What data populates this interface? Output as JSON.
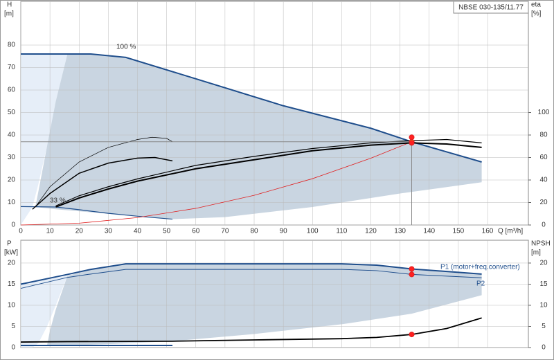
{
  "chart_data": [
    {
      "type": "line",
      "model": "NBSE 030-135/11.77",
      "ylabel": "H",
      "yunit": "[m]",
      "y2label": "eta",
      "y2unit": "[%]",
      "xlabel": "Q [m³/h]",
      "xlim": [
        0,
        174
      ],
      "xticks": [
        0,
        10,
        20,
        30,
        40,
        50,
        60,
        70,
        80,
        90,
        100,
        110,
        120,
        130,
        140,
        150,
        160
      ],
      "ylim": [
        0,
        99.4
      ],
      "yticks": [
        0,
        10,
        20,
        30,
        40,
        50,
        60,
        70,
        80
      ],
      "y2lim": [
        0,
        198.8
      ],
      "y2ticks": [
        0,
        20,
        40,
        60,
        80,
        100
      ],
      "show_xtick_labels": true,
      "grid": true,
      "annotations": [
        "100 %",
        "33 %"
      ],
      "series": [
        {
          "fill": true,
          "color": "#e6eef8",
          "x": [
            0,
            16,
            12,
            9,
            6,
            4,
            0
          ],
          "values": [
            76,
            76,
            55,
            35,
            18,
            8,
            0
          ]
        },
        {
          "fill": true,
          "color": "#c9d5e1",
          "x": [
            16,
            24,
            36,
            60,
            90,
            120,
            134,
            158,
            158,
            130,
            100,
            70,
            52,
            30,
            12,
            5,
            6.5,
            9,
            12
          ],
          "values": [
            76,
            76,
            74.5,
            65,
            53,
            43,
            37,
            28,
            19,
            14,
            8,
            3.5,
            2.6,
            5,
            7,
            8,
            18,
            35,
            55
          ]
        },
        {
          "color": "#1f4e8c",
          "width": 2,
          "x": [
            0,
            16,
            24,
            36,
            60,
            90,
            120,
            134,
            158
          ],
          "values": [
            76,
            76,
            76,
            74.5,
            65,
            53,
            43,
            37,
            28
          ]
        },
        {
          "color": "#1f4e8c",
          "width": 1.2,
          "x": [
            0,
            12,
            20,
            30,
            40,
            52
          ],
          "values": [
            8.2,
            8,
            6.8,
            5.2,
            3.9,
            2.6
          ]
        },
        {
          "color": "#e02020",
          "width": 0.8,
          "x": [
            0,
            20,
            40,
            60,
            80,
            100,
            120,
            134
          ],
          "values": [
            0,
            0.8,
            3.3,
            7.4,
            13.2,
            20.6,
            29.7,
            37
          ]
        },
        {
          "color": "#000000",
          "width": 2,
          "axis": "y2",
          "x": [
            12,
            20,
            30,
            40,
            60,
            80,
            100,
            120,
            134,
            146,
            158
          ],
          "values": [
            16,
            24,
            32,
            39,
            50,
            58,
            66,
            71,
            73,
            72,
            69
          ]
        },
        {
          "color": "#000000",
          "width": 1.2,
          "axis": "y2",
          "x": [
            12,
            20,
            30,
            40,
            60,
            80,
            100,
            120,
            134,
            146,
            158
          ],
          "values": [
            17,
            26,
            34,
            41,
            53,
            61,
            68,
            73,
            75,
            76,
            73
          ]
        },
        {
          "color": "#000000",
          "width": 0.7,
          "axis": "y2",
          "x": [
            5,
            10,
            20,
            30,
            40,
            45,
            50,
            52
          ],
          "values": [
            16,
            34,
            56,
            69,
            76,
            78,
            77,
            74
          ]
        },
        {
          "color": "#000000",
          "width": 1.5,
          "axis": "y2",
          "x": [
            4,
            10,
            20,
            30,
            40,
            46,
            52
          ],
          "values": [
            14,
            28,
            46,
            55,
            59.5,
            60,
            57
          ]
        },
        {
          "marker": true,
          "guide": true,
          "color": "#ffcc00",
          "x": [
            134
          ],
          "values": [
            37
          ]
        },
        {
          "marker": true,
          "color": "#ff2020",
          "axis": "y2",
          "x": [
            134,
            134
          ],
          "values": [
            78,
            73
          ]
        }
      ]
    },
    {
      "type": "line",
      "ylabel": "P",
      "yunit": "[kW]",
      "y2label": "NPSH",
      "y2unit": "[m]",
      "xlim": [
        0,
        174
      ],
      "xticks": [
        0,
        10,
        20,
        30,
        40,
        50,
        60,
        70,
        80,
        90,
        100,
        110,
        120,
        130,
        140,
        150,
        160
      ],
      "ylim": [
        0,
        25.4
      ],
      "yticks": [
        0,
        5,
        10,
        15,
        20
      ],
      "y2lim": [
        0,
        25.4
      ],
      "y2ticks": [
        0,
        5,
        10,
        15,
        20
      ],
      "show_xtick_labels": false,
      "grid": true,
      "annotations": [
        "P1 (motor+freq.converter)",
        "P2"
      ],
      "series": [
        {
          "fill": true,
          "color": "#e6eef8",
          "x": [
            0,
            16,
            12,
            9,
            6,
            4,
            0
          ],
          "values": [
            15,
            17,
            10,
            5,
            1,
            0,
            0
          ]
        },
        {
          "fill": true,
          "color": "#c9d5e1",
          "x": [
            16,
            24,
            36,
            110,
            122,
            134,
            158,
            158,
            134,
            110,
            80,
            52,
            30,
            16,
            9,
            10,
            12,
            14
          ],
          "values": [
            17,
            18.5,
            19.8,
            19.8,
            19.5,
            18.6,
            17.4,
            12.4,
            8,
            5.5,
            3.2,
            1.5,
            0.8,
            0.5,
            0.5,
            4,
            9,
            13
          ]
        },
        {
          "color": "#1f4e8c",
          "width": 2,
          "x": [
            0,
            16,
            24,
            36,
            60,
            90,
            110,
            122,
            134,
            158
          ],
          "values": [
            15,
            17.3,
            18.5,
            19.8,
            19.8,
            19.8,
            19.8,
            19.5,
            18.6,
            17.4
          ]
        },
        {
          "color": "#1f4e8c",
          "width": 1,
          "x": [
            0,
            16,
            24,
            36,
            110,
            122,
            134,
            158
          ],
          "values": [
            14,
            16.6,
            17.4,
            18.5,
            18.5,
            18.2,
            17.3,
            16.5
          ]
        },
        {
          "color": "#000000",
          "width": 1.8,
          "axis": "y2",
          "x": [
            0,
            16,
            52,
            80,
            110,
            122,
            134,
            146,
            158
          ],
          "values": [
            1.3,
            1.4,
            1.5,
            1.8,
            2.1,
            2.4,
            3.1,
            4.5,
            7
          ]
        },
        {
          "color": "#1f4e8c",
          "width": 2,
          "x": [
            0,
            52
          ],
          "values": [
            0.5,
            0.5
          ]
        },
        {
          "marker": true,
          "color": "#ff2020",
          "x": [
            134,
            134
          ],
          "values": [
            18.6,
            17.3
          ]
        },
        {
          "marker": true,
          "color": "#ff2020",
          "axis": "y2",
          "x": [
            134
          ],
          "values": [
            3.1
          ]
        }
      ]
    }
  ]
}
